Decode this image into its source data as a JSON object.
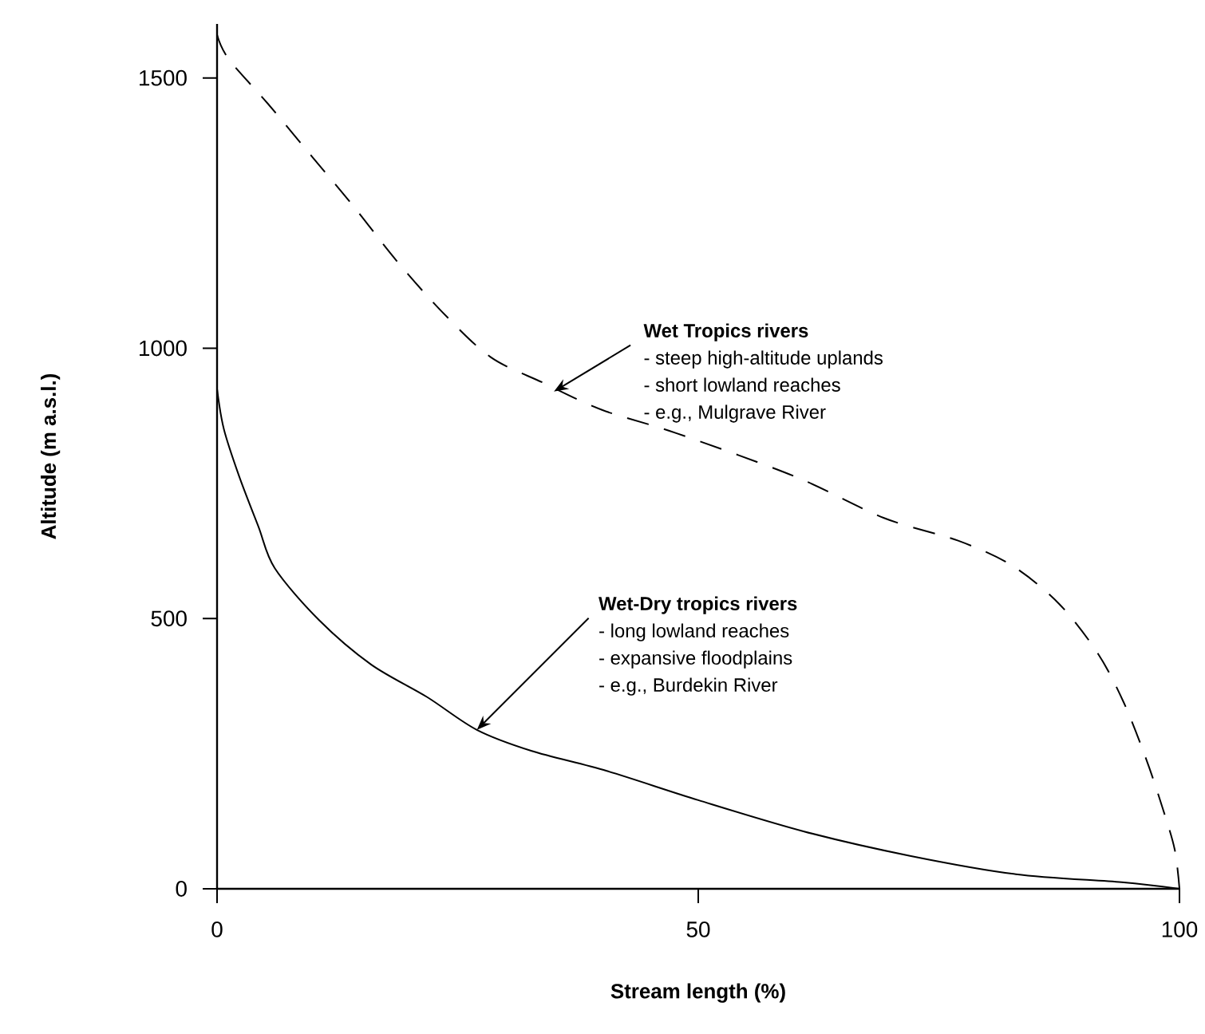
{
  "chart_data": {
    "type": "line",
    "xlabel": "Stream length (%)",
    "ylabel": "Altitude (m a.s.l.)",
    "xlim": [
      0,
      100
    ],
    "ylim": [
      0,
      1600
    ],
    "xticks": [
      0,
      50,
      100
    ],
    "yticks": [
      0,
      500,
      1000,
      1500
    ],
    "grid": false,
    "series": [
      {
        "color": "#000000",
        "line_style": "dashed",
        "x": [
          0,
          1.2,
          5.3,
          9.8,
          14.3,
          18.6,
          23.4,
          28.4,
          33.9,
          40,
          47.7,
          60,
          69.3,
          77,
          82.6,
          87.5,
          91.5,
          94.2,
          96.5,
          98.2,
          99.5,
          100
        ],
        "values": [
          1580,
          1535,
          1452,
          1356,
          1260,
          1163,
          1067,
          984,
          936,
          886,
          843,
          763,
          686,
          644,
          598,
          527,
          436,
          345,
          242,
          152,
          73,
          0
        ]
      },
      {
        "color": "#000000",
        "line_style": "solid",
        "x": [
          0,
          0.7,
          2.3,
          4.3,
          6,
          10.6,
          16,
          21.8,
          27,
          32.7,
          40.5,
          50,
          61,
          72,
          83,
          94,
          100
        ],
        "values": [
          925,
          851,
          763,
          670,
          593,
          497,
          415,
          355,
          294,
          255,
          218,
          164,
          106,
          61,
          27,
          12,
          0
        ]
      }
    ],
    "annotations": [
      {
        "text": "Wet Tropics rivers",
        "x": 35,
        "y": 920
      },
      "- steep high-altitude uplands",
      "- short lowland reaches",
      "- e.g., Mulgrave River",
      {
        "text": "Wet-Dry tropics rivers",
        "x": 27,
        "y": 294
      },
      "- long lowland reaches",
      "- expansive floodplains",
      "- e.g., Burdekin River"
    ]
  }
}
